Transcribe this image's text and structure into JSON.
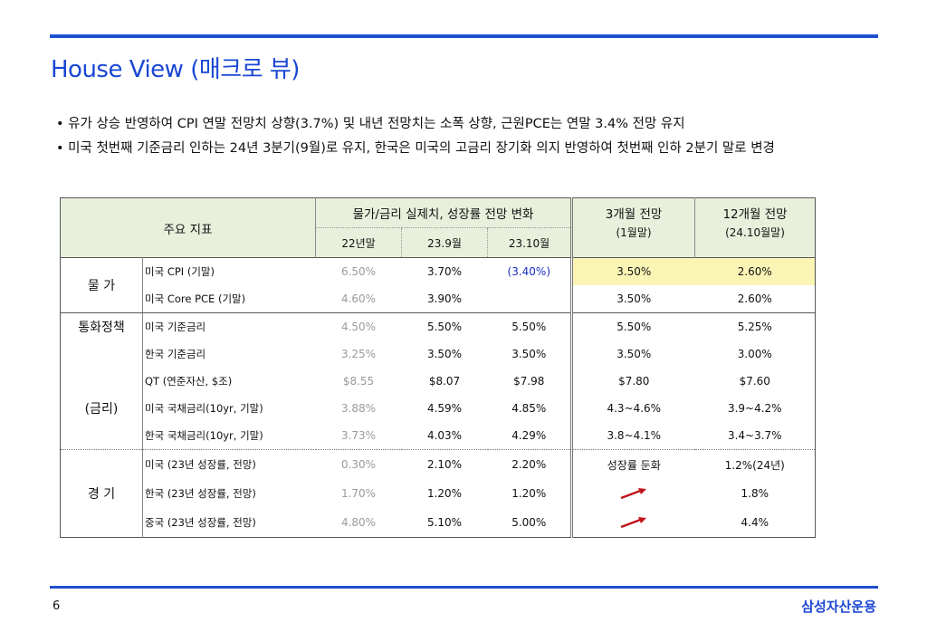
{
  "title": "House View (매크로 뷰)",
  "bullets": [
    "• 유가 상승 반영하여 CPI 연말 전망치 상향(3.7%) 및 내년 전망치는 소폭 상향, 근원PCE는 연말 3.4% 전망 유지",
    "• 미국 첫번째 기준금리 인하는 24년 3분기(9월)로 유지, 한국은 미국의 고금리 장기화 의지 반영하여 첫번째 인하 2분기 말로 변경"
  ],
  "table": {
    "header": {
      "main_indicator": "주요 지표",
      "group": "물가/금리 실제치, 성장률 전망 변화",
      "col1": "22년말",
      "col2": "23.9월",
      "col3": "23.10월",
      "f3m_title": "3개월 전망",
      "f3m_sub": "(1월말)",
      "f12m_title": "12개월 전망",
      "f12m_sub": "(24.10월말)"
    },
    "categories": {
      "price": "물 가",
      "policy": "통화정책",
      "rate": "(금리)",
      "economy": "경 기"
    },
    "rows": [
      {
        "name": "미국 CPI (기말)",
        "c1": "6.50%",
        "c2": "3.70%",
        "c3": "(3.40%)",
        "f3": "3.50%",
        "f12": "2.60%"
      },
      {
        "name": "미국 Core PCE (기말)",
        "c1": "4.60%",
        "c2": "3.90%",
        "c3": "",
        "f3": "3.50%",
        "f12": "2.60%"
      },
      {
        "name": "미국 기준금리",
        "c1": "4.50%",
        "c2": "5.50%",
        "c3": "5.50%",
        "f3": "5.50%",
        "f12": "5.25%"
      },
      {
        "name": "한국 기준금리",
        "c1": "3.25%",
        "c2": "3.50%",
        "c3": "3.50%",
        "f3": "3.50%",
        "f12": "3.00%"
      },
      {
        "name": "QT (연준자산, $조)",
        "c1": "$8.55",
        "c2": "$8.07",
        "c3": "$7.98",
        "f3": "$7.80",
        "f12": "$7.60"
      },
      {
        "name": "미국 국채금리(10yr, 기말)",
        "c1": "3.88%",
        "c2": "4.59%",
        "c3": "4.85%",
        "f3": "4.3~4.6%",
        "f12": "3.9~4.2%"
      },
      {
        "name": "한국 국채금리(10yr, 기말)",
        "c1": "3.73%",
        "c2": "4.03%",
        "c3": "4.29%",
        "f3": "3.8~4.1%",
        "f12": "3.4~3.7%"
      },
      {
        "name": "미국 (23년 성장률, 전망)",
        "c1": "0.30%",
        "c2": "2.10%",
        "c3": "2.20%",
        "f3": "성장률 둔화",
        "f12": "1.2%(24년)"
      },
      {
        "name": "한국 (23년 성장률, 전망)",
        "c1": "1.70%",
        "c2": "1.20%",
        "c3": "1.20%",
        "f3": "",
        "f12": "1.8%"
      },
      {
        "name": "중국 (23년 성장률, 전망)",
        "c1": "4.80%",
        "c2": "5.10%",
        "c3": "5.00%",
        "f3": "",
        "f12": "4.4%"
      }
    ],
    "arrow_icon": "up-right-arrow-icon",
    "arrow_color": "#c0141c"
  },
  "page_number": "6",
  "brand": "삼성자산운용",
  "colors": {
    "accent": "#1a47d4",
    "header_bg": "#e8f0dc",
    "highlight": "#fbf5b5"
  }
}
